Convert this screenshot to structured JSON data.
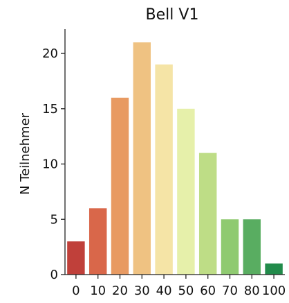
{
  "chart_data": {
    "type": "bar",
    "title": "Bell V1",
    "xlabel": "",
    "ylabel": "N Teilnehmer",
    "categories": [
      "0",
      "10",
      "20",
      "30",
      "40",
      "50",
      "60",
      "70",
      "80",
      "100"
    ],
    "values": [
      3,
      6,
      16,
      21,
      19,
      15,
      11,
      5,
      5,
      1
    ],
    "colors": [
      "#c0403a",
      "#d9674a",
      "#e89a62",
      "#efc282",
      "#f5e4a6",
      "#e6f0aa",
      "#bedd86",
      "#8fca70",
      "#59ad61",
      "#228b4b"
    ],
    "yticks": [
      0,
      5,
      10,
      15,
      20
    ],
    "ylim": [
      0,
      22.2
    ],
    "grid": false
  }
}
